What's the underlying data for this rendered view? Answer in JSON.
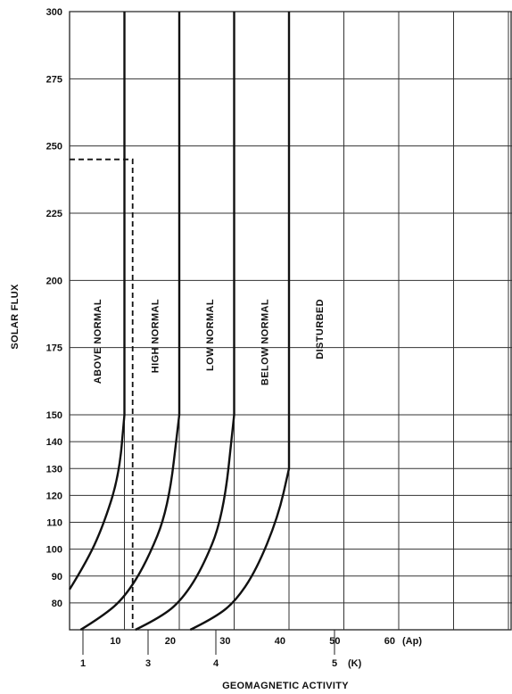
{
  "chart_data": {
    "type": "line",
    "ylabel": "SOLAR FLUX",
    "xlabel": "GEOMAGNETIC ACTIVITY",
    "y_ticks_upper": [
      "150",
      "175",
      "200",
      "225",
      "250",
      "275",
      "300"
    ],
    "y_ticks_lower": [
      "80",
      "90",
      "100",
      "110",
      "120",
      "130",
      "140",
      "150"
    ],
    "ap_ticks": [
      {
        "value": 10,
        "label": "10"
      },
      {
        "value": 20,
        "label": "20"
      },
      {
        "value": 30,
        "label": "30"
      },
      {
        "value": 40,
        "label": "40"
      },
      {
        "value": 50,
        "label": "50"
      },
      {
        "value": 60,
        "label": "60"
      }
    ],
    "ap_unit_label": "(Ap)",
    "k_ticks": [
      {
        "value": 1,
        "label": "1"
      },
      {
        "value": 3,
        "label": "3"
      },
      {
        "value": 4,
        "label": "4"
      },
      {
        "value": 5,
        "label": "5"
      }
    ],
    "k_unit_label": "(K)",
    "xlim": [
      0,
      70
    ],
    "ylim": [
      70,
      300
    ],
    "grid": true,
    "series": [
      {
        "x": [
          0,
          3,
          6,
          9,
          10,
          10
        ],
        "y": [
          85,
          95,
          108,
          127,
          150,
          300
        ]
      },
      {
        "x": [
          2,
          6,
          10,
          14,
          18,
          20,
          20
        ],
        "y": [
          70,
          75,
          82,
          95,
          115,
          150,
          300
        ]
      },
      {
        "x": [
          12,
          16,
          20,
          24,
          28,
          30,
          30
        ],
        "y": [
          70,
          74,
          80,
          92,
          112,
          150,
          300
        ]
      },
      {
        "x": [
          22,
          26,
          30,
          34,
          38,
          40,
          40
        ],
        "y": [
          70,
          74,
          80,
          92,
          112,
          130,
          300
        ]
      }
    ],
    "regions": [
      {
        "label": "ABOVE NORMAL",
        "x": 5
      },
      {
        "label": "HIGH NORMAL",
        "x": 15.5
      },
      {
        "label": "LOW NORMAL",
        "x": 25.5
      },
      {
        "label": "BELOW NORMAL",
        "x": 35.5
      },
      {
        "label": "DISTURBED",
        "x": 45.5
      }
    ],
    "example_point": {
      "x": 11.5,
      "y": 245
    }
  }
}
